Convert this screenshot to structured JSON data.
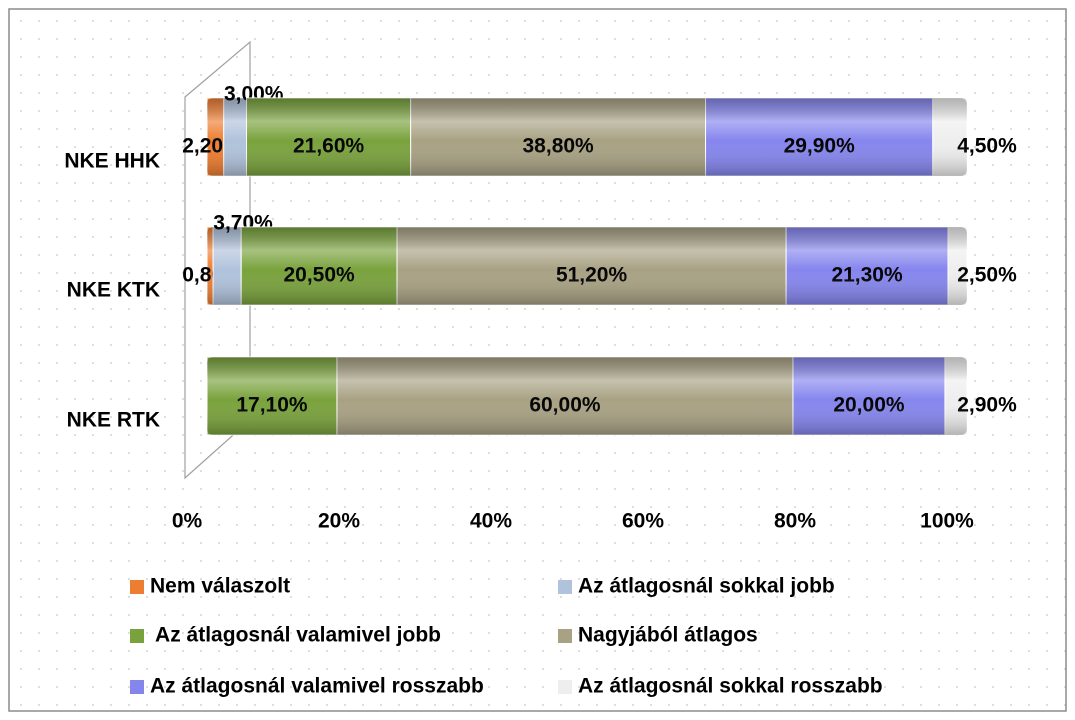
{
  "chart_data": {
    "type": "stacked-bar-horizontal",
    "categories": [
      "NKE HHK",
      "NKE KTK",
      "NKE RTK"
    ],
    "series": [
      {
        "name": "Nem válaszolt",
        "color": "#ed7d31",
        "values": [
          2.2,
          0.8,
          0
        ],
        "value_labels": [
          "2,20%",
          "0,80%",
          null
        ]
      },
      {
        "name": "Az átlagosnál sokkal jobb",
        "color": "#b0c2dc",
        "values": [
          3.0,
          3.7,
          0
        ],
        "value_labels": [
          "3,00%",
          "3,70%",
          null
        ]
      },
      {
        "name": " Az átlagosnál valamivel jobb",
        "color": "#79a23c",
        "values": [
          21.6,
          20.5,
          17.1
        ],
        "value_labels": [
          "21,60%",
          "20,50%",
          "17,10%"
        ]
      },
      {
        "name": "Nagyjából átlagos",
        "color": "#a8a183",
        "values": [
          38.8,
          51.2,
          60.0
        ],
        "value_labels": [
          "38,80%",
          "51,20%",
          "60,00%"
        ]
      },
      {
        "name": "Az átlagosnál valamivel rosszabb",
        "color": "#8585ee",
        "values": [
          29.9,
          21.3,
          20.0
        ],
        "value_labels": [
          "29,90%",
          "21,30%",
          "20,00%"
        ]
      },
      {
        "name": "Az átlagosnál sokkal rosszabb",
        "color": "#eeeeee",
        "values": [
          4.5,
          2.5,
          2.9
        ],
        "value_labels": [
          "4,50%",
          "2,50%",
          "2,90%"
        ]
      }
    ],
    "xlim": [
      0,
      100
    ],
    "xticks": [
      {
        "value": 0,
        "label": "0%"
      },
      {
        "value": 20,
        "label": "20%"
      },
      {
        "value": 40,
        "label": "40%"
      },
      {
        "value": 60,
        "label": "60%"
      },
      {
        "value": 80,
        "label": "80%"
      },
      {
        "value": 100,
        "label": "100%"
      }
    ],
    "legend": "bottom"
  }
}
